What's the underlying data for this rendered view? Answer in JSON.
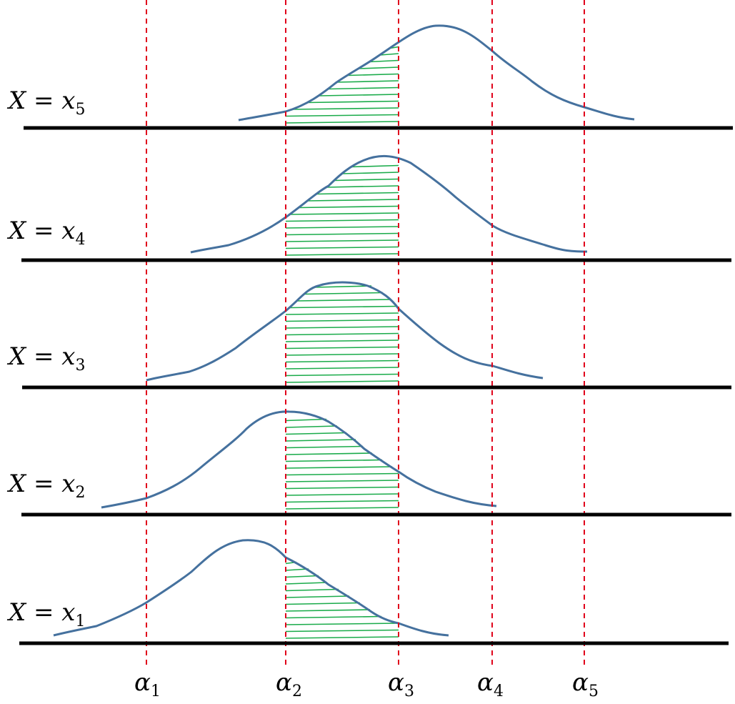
{
  "rows": [
    {
      "label": "X = x",
      "sub": "5"
    },
    {
      "label": "X = x",
      "sub": "4"
    },
    {
      "label": "X = x",
      "sub": "3"
    },
    {
      "label": "X = x",
      "sub": "2"
    },
    {
      "label": "X = x",
      "sub": "1"
    }
  ],
  "thresholds": [
    {
      "label": "α",
      "sub": "1"
    },
    {
      "label": "α",
      "sub": "2"
    },
    {
      "label": "α",
      "sub": "3"
    },
    {
      "label": "α",
      "sub": "4"
    },
    {
      "label": "α",
      "sub": "5"
    }
  ],
  "colors": {
    "curve": "#45719e",
    "threshold_line": "#e0001b",
    "hatch": "#1aab4a",
    "baseline": "#000000"
  }
}
